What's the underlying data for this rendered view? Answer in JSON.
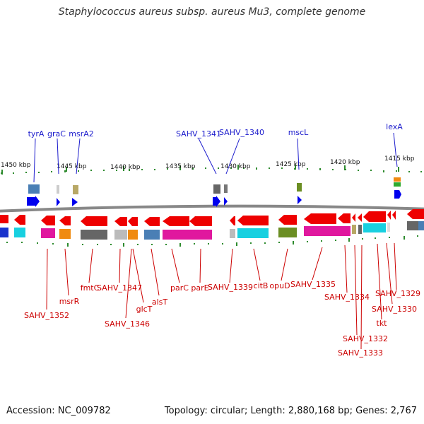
{
  "title": "Staphylococcus aureus subsp. aureus Mu3, complete genome",
  "footer": {
    "accession": "Accession: NC_009782",
    "topology": "Topology: circular; Length: 2,880,168 bp; Genes: 2,767"
  },
  "scale": {
    "labels": [
      "1450 kbp",
      "1445 kbp",
      "1440 kbp",
      "1435 kbp",
      "1430 kbp",
      "1425 kbp",
      "1420 kbp",
      "1415 kbp"
    ]
  },
  "top_labels": [
    "tyrA",
    "graC",
    "msrA2",
    "SAHV_1341",
    "SAHV_1340",
    "mscL",
    "lexA"
  ],
  "bottom_labels": [
    "SAHV_1352",
    "msrR",
    "fmtC",
    "SAHV_1347",
    "SAHV_1346",
    "glcT",
    "alsT",
    "parC",
    "parE",
    "SAHV_1339",
    "citB",
    "opuD",
    "SAHV_1335",
    "SAHV_1334",
    "SAHV_1332",
    "SAHV_1333",
    "tkt",
    "SAHV_1330",
    "SAHV_1329"
  ],
  "colors": {
    "label_top": "#1a1acc",
    "label_bottom": "#cc0000",
    "gene_arrow_reverse": "#ee0000",
    "gene_arrow_forward": "#0000ee",
    "backbone": "#888888",
    "tick": "#2e8b2e",
    "cog_pink": "#e0189e",
    "cog_cyan": "#18d0e0",
    "cog_gray": "#777777",
    "cog_steel": "#4a7fb5",
    "cog_orange": "#f08a10",
    "cog_olive": "#6b8e23",
    "cog_khaki": "#b8a866"
  }
}
